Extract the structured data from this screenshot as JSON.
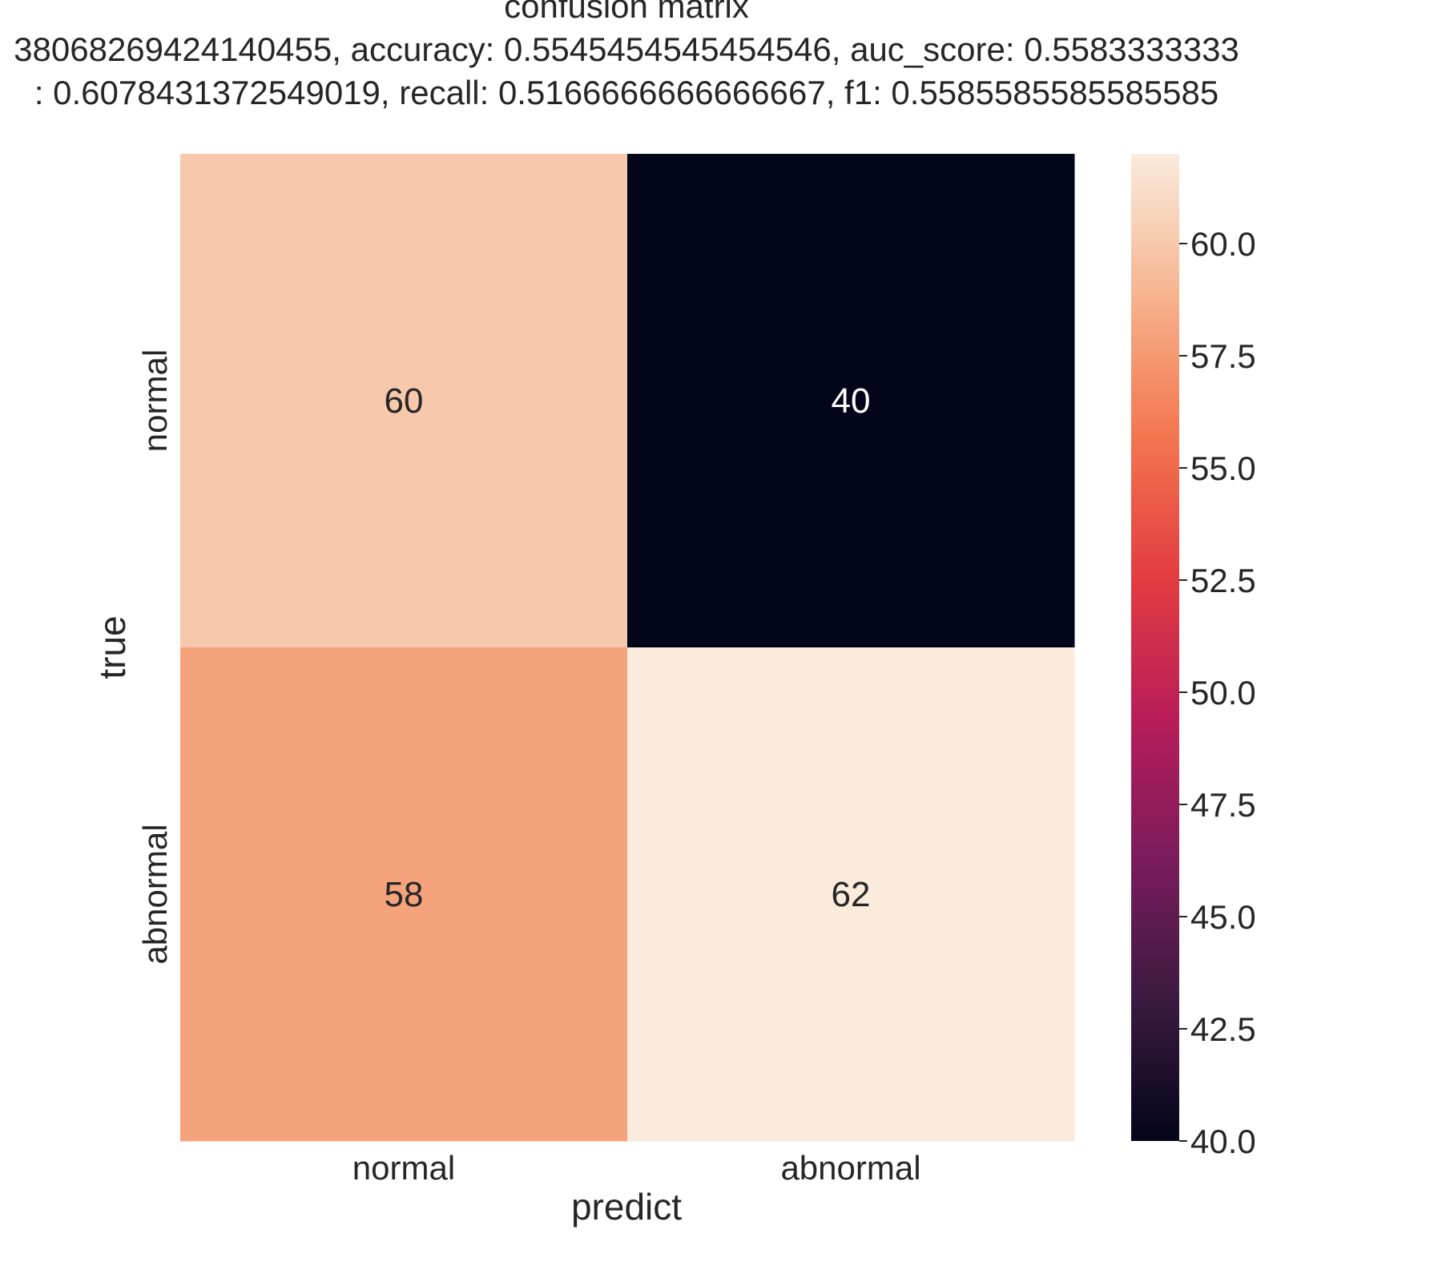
{
  "chart_data": {
    "type": "heatmap",
    "title_lines": [
      "confusion matrix",
      "38068269424140455, accuracy: 0.5545454545454546, auc_score: 0.5583333333",
      ": 0.6078431372549019, recall: 0.5166666666666667, f1: 0.5585585585585585"
    ],
    "xlabel": "predict",
    "ylabel": "true",
    "x_categories": [
      "normal",
      "abnormal"
    ],
    "y_categories": [
      "normal",
      "abnormal"
    ],
    "values": [
      [
        60,
        40
      ],
      [
        58,
        62
      ]
    ],
    "colorbar": {
      "min": 40,
      "max": 62,
      "ticks": [
        40.0,
        42.5,
        45.0,
        47.5,
        50.0,
        52.5,
        55.0,
        57.5,
        60.0
      ],
      "tick_labels": [
        "40.0",
        "42.5",
        "45.0",
        "47.5",
        "50.0",
        "52.5",
        "55.0",
        "57.5",
        "60.0"
      ]
    },
    "colormap": [
      "#03051a",
      "#3b1a41",
      "#7a1c5c",
      "#b81d59",
      "#e33c40",
      "#f3764f",
      "#f6b48e",
      "#faebdd"
    ]
  }
}
